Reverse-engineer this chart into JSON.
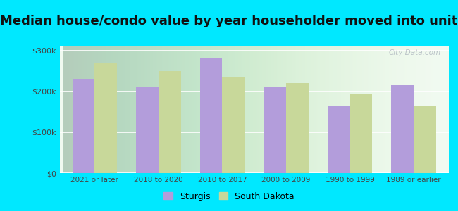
{
  "title": "Median house/condo value by year householder moved into unit",
  "categories": [
    "2021 or later",
    "2018 to 2020",
    "2010 to 2017",
    "2000 to 2009",
    "1990 to 1999",
    "1989 or earlier"
  ],
  "sturgis_values": [
    230000,
    210000,
    280000,
    210000,
    165000,
    215000
  ],
  "south_dakota_values": [
    270000,
    250000,
    235000,
    220000,
    195000,
    165000
  ],
  "sturgis_color": "#b39ddb",
  "south_dakota_color": "#c8d89a",
  "background_color": "#00e8ff",
  "plot_bg_top": "#eaf5e8",
  "plot_bg_bottom": "#f8fdf5",
  "title_fontsize": 13,
  "legend_labels": [
    "Sturgis",
    "South Dakota"
  ],
  "ylim": [
    0,
    310000
  ],
  "yticks": [
    0,
    100000,
    200000,
    300000
  ],
  "ytick_labels": [
    "$0",
    "$100k",
    "$200k",
    "$300k"
  ],
  "bar_width": 0.35,
  "watermark": "City-Data.com"
}
